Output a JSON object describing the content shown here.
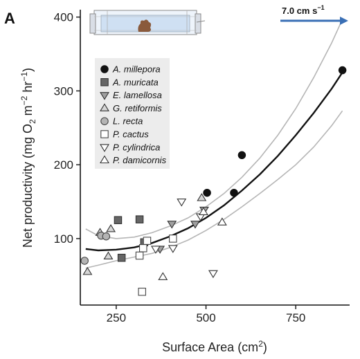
{
  "panel_label": "A",
  "flow": {
    "label": "7.0 cm s",
    "exponent": "−1",
    "arrow_color": "#3a6fb5"
  },
  "icons": {
    "chamber": "flow-chamber-coral-icon"
  },
  "colors": {
    "fit": "#111111",
    "ci": "#b5b5b5",
    "legend_bg": "#ececec",
    "axis": "#111111"
  },
  "chart_data": {
    "type": "scatter",
    "xlabel": {
      "main": "Surface Area (cm",
      "sup": "2",
      "tail": ")"
    },
    "ylabel": {
      "main": "Net productivity (mg O",
      "sub": "2",
      "m": " m",
      "msup": "−2",
      "hr": " hr",
      "hrsup": "−1",
      "tail": ")"
    },
    "xlim": [
      150,
      900
    ],
    "ylim": [
      10,
      410
    ],
    "xticks": [
      250,
      500,
      750
    ],
    "yticks": [
      100,
      200,
      300,
      400
    ],
    "legend": {
      "position": "top-left"
    },
    "series": [
      {
        "name": "A. millepora",
        "marker": "circle-filled",
        "points": [
          [
            503,
            162
          ],
          [
            578,
            162
          ],
          [
            600,
            213
          ],
          [
            880,
            328
          ]
        ]
      },
      {
        "name": "A. muricata",
        "marker": "square-filled",
        "points": [
          [
            255,
            125
          ],
          [
            315,
            126
          ],
          [
            265,
            74
          ],
          [
            328,
            95
          ]
        ]
      },
      {
        "name": "E. lamellosa",
        "marker": "triangle-down-filled",
        "points": [
          [
            405,
            120
          ],
          [
            470,
            120
          ],
          [
            495,
            139
          ],
          [
            372,
            86
          ]
        ]
      },
      {
        "name": "G. retiformis",
        "marker": "triangle-up-open-shaded",
        "points": [
          [
            170,
            55
          ],
          [
            235,
            113
          ],
          [
            228,
            76
          ],
          [
            205,
            108
          ],
          [
            488,
            155
          ]
        ]
      },
      {
        "name": "L. recta",
        "marker": "circle-shaded",
        "points": [
          [
            162,
            70
          ],
          [
            208,
            104
          ],
          [
            222,
            103
          ]
        ]
      },
      {
        "name": "P. cactus",
        "marker": "square-open",
        "points": [
          [
            322,
            28
          ],
          [
            315,
            77
          ],
          [
            325,
            87
          ],
          [
            336,
            97
          ],
          [
            408,
            100
          ]
        ]
      },
      {
        "name": "P. cylindrica",
        "marker": "triangle-down-open",
        "points": [
          [
            432,
            150
          ],
          [
            520,
            53
          ],
          [
            408,
            87
          ],
          [
            360,
            86
          ],
          [
            485,
            130
          ]
        ]
      },
      {
        "name": "P. damicornis",
        "marker": "triangle-up-open",
        "points": [
          [
            380,
            48
          ],
          [
            545,
            122
          ],
          [
            493,
            136
          ]
        ]
      }
    ],
    "fit": {
      "x": [
        165,
        200,
        250,
        300,
        350,
        400,
        450,
        500,
        550,
        600,
        650,
        700,
        750,
        800,
        850,
        880
      ],
      "y": [
        86,
        84,
        85,
        88,
        94,
        103,
        114,
        128,
        145,
        165,
        187,
        212,
        240,
        270,
        303,
        325
      ]
    },
    "ci_upper": {
      "x": [
        165,
        200,
        250,
        300,
        350,
        400,
        450,
        500,
        550,
        600,
        650,
        700,
        750,
        800,
        850,
        880
      ],
      "y": [
        113,
        104,
        100,
        102,
        108,
        117,
        128,
        143,
        161,
        183,
        209,
        240,
        276,
        318,
        365,
        397
      ]
    },
    "ci_lower": {
      "x": [
        165,
        200,
        250,
        300,
        350,
        400,
        450,
        500,
        550,
        600,
        650,
        700,
        750,
        800,
        850,
        880
      ],
      "y": [
        60,
        64,
        70,
        75,
        80,
        88,
        98,
        111,
        126,
        143,
        161,
        180,
        200,
        224,
        253,
        273
      ]
    }
  }
}
